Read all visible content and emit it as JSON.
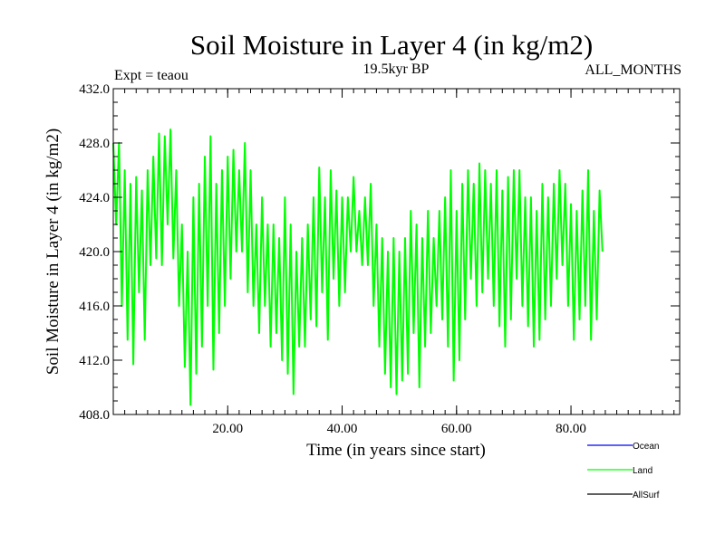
{
  "chart_data": {
    "type": "line",
    "title": "Soil Moisture in Layer 4 (in kg/m2)",
    "subtitle": "19.5kyr BP",
    "left_label": "Expt = teaou",
    "right_label": "ALL_MONTHS",
    "xlabel": "Time (in years since start)",
    "ylabel": "Soil Moisture in Layer 4 (in kg/m2)",
    "xlim": [
      0,
      99
    ],
    "ylim": [
      408,
      432
    ],
    "x_ticks": [
      20,
      40,
      60,
      80
    ],
    "x_tick_labels": [
      "20.00",
      "40.00",
      "60.00",
      "80.00"
    ],
    "y_ticks": [
      408,
      412,
      416,
      420,
      424,
      428,
      432
    ],
    "y_tick_labels": [
      "408.0",
      "412.0",
      "416.0",
      "420.0",
      "424.0",
      "428.0",
      "432.0"
    ],
    "legend": [
      {
        "name": "Ocean",
        "color": "#0000ff"
      },
      {
        "name": "Land",
        "color": "#00ff00"
      },
      {
        "name": "AllSurf",
        "color": "#000000"
      }
    ],
    "series": [
      {
        "name": "Land",
        "color": "#00ff00",
        "x_start": 0,
        "x_step": 0.5,
        "values": [
          428.0,
          422.0,
          428.0,
          416.0,
          426.0,
          413.5,
          425.0,
          411.7,
          425.5,
          417.0,
          424.5,
          413.5,
          426.0,
          419.0,
          427.0,
          419.5,
          428.7,
          419.0,
          428.5,
          422.0,
          429.0,
          419.5,
          426.0,
          416.0,
          422.0,
          411.5,
          420.0,
          408.7,
          424.0,
          411.0,
          425.0,
          413.0,
          427.0,
          416.0,
          428.5,
          411.3,
          425.0,
          414.0,
          426.0,
          416.0,
          427.0,
          418.0,
          427.5,
          420.0,
          426.0,
          420.0,
          428.0,
          417.0,
          426.0,
          416.0,
          422.0,
          414.0,
          424.0,
          416.0,
          422.0,
          413.0,
          422.0,
          414.0,
          421.0,
          412.0,
          424.0,
          411.0,
          422.0,
          409.5,
          420.0,
          413.0,
          421.0,
          413.0,
          422.0,
          415.0,
          424.0,
          414.5,
          426.2,
          417.0,
          424.0,
          413.5,
          426.0,
          418.0,
          424.5,
          416.0,
          424.0,
          417.0,
          424.0,
          420.0,
          425.5,
          420.0,
          423.0,
          419.0,
          424.0,
          419.0,
          425.0,
          416.0,
          422.0,
          413.0,
          421.0,
          411.0,
          420.0,
          410.0,
          421.0,
          409.5,
          420.0,
          410.5,
          421.0,
          411.0,
          423.0,
          414.0,
          422.0,
          410.0,
          421.0,
          413.0,
          423.0,
          414.0,
          421.0,
          416.0,
          423.0,
          415.0,
          424.0,
          413.0,
          426.0,
          410.5,
          423.0,
          412.0,
          425.0,
          415.0,
          426.0,
          418.0,
          425.0,
          416.0,
          426.5,
          417.0,
          426.0,
          418.0,
          425.0,
          416.0,
          426.0,
          414.5,
          424.5,
          413.0,
          425.5,
          415.0,
          426.0,
          418.0,
          426.0,
          416.0,
          424.0,
          414.5,
          424.0,
          413.0,
          423.0,
          413.5,
          425.0,
          415.0,
          424.0,
          416.0,
          425.0,
          418.0,
          426.0,
          419.0,
          425.0,
          416.0,
          423.5,
          413.5,
          423.0,
          415.0,
          424.5,
          416.0,
          426.0,
          413.5,
          423.0,
          415.0,
          424.5,
          420.0
        ]
      }
    ]
  }
}
